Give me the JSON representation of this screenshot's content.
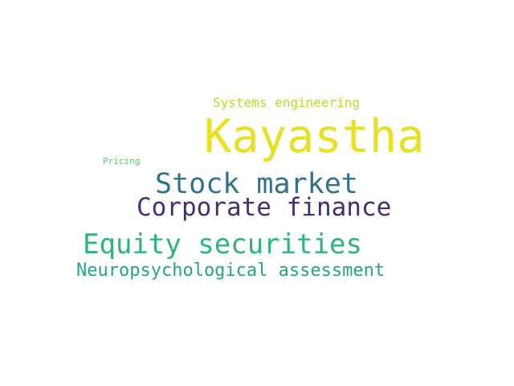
{
  "words": [
    {
      "text": "Kayastha",
      "color": "#e8e023"
    },
    {
      "text": "Systems engineering",
      "color": "#b5de2b"
    },
    {
      "text": "Pricing",
      "color": "#5ec962"
    },
    {
      "text": "Stock market",
      "color": "#33728a"
    },
    {
      "text": "Corporate finance",
      "color": "#472c7a"
    },
    {
      "text": "Equity securities",
      "color": "#2fb47c"
    },
    {
      "text": "Neuropsychological assessment",
      "color": "#25a583"
    }
  ]
}
